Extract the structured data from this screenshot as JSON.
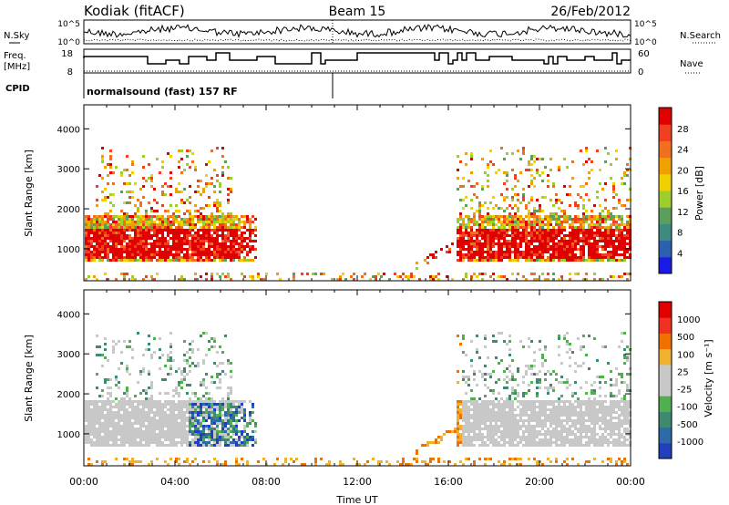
{
  "header": {
    "station": "Kodiak (fitACF)",
    "beam": "Beam 15",
    "date": "26/Feb/2012"
  },
  "panels": {
    "nsky_label": "N.Sky",
    "nsearch_label": "N.Search",
    "freq_label_top": "Freq.",
    "freq_label_unit": "[MHz]",
    "nave_label": "Nave",
    "cpid_label": "CPID",
    "cpid_text": "normalsound (fast) 157 RF",
    "noise_ticks": [
      "10^5",
      "10^0"
    ],
    "freq_ticks": [
      "18",
      "8"
    ],
    "nave_ticks": [
      "60",
      "0"
    ]
  },
  "chart_data": [
    {
      "type": "heatmap",
      "name": "Power",
      "ylabel": "Slant Range [km]",
      "ylim": [
        200,
        4600
      ],
      "yticks": [
        "4000",
        "3000",
        "2000",
        "1000"
      ],
      "xlim_hours": [
        0,
        24
      ],
      "xticks": [
        "00:00",
        "04:00",
        "08:00",
        "12:00",
        "16:00",
        "20:00",
        "00:00"
      ],
      "colorbar": {
        "label": "Power [dB]",
        "ticks": [
          "28",
          "24",
          "20",
          "16",
          "12",
          "8",
          "4"
        ],
        "range": [
          0,
          30
        ],
        "colors": [
          "#1a1ae6",
          "#2d5fb0",
          "#3d8a80",
          "#5aa05a",
          "#9ccf2e",
          "#f0d000",
          "#f0a000",
          "#f07020",
          "#f04020",
          "#e00000"
        ]
      }
    },
    {
      "type": "heatmap",
      "name": "Velocity",
      "ylabel": "Slant Range [km]",
      "xlabel": "Time UT",
      "ylim": [
        200,
        4600
      ],
      "yticks": [
        "4000",
        "3000",
        "2000",
        "1000"
      ],
      "xlim_hours": [
        0,
        24
      ],
      "xticks": [
        "00:00",
        "04:00",
        "08:00",
        "12:00",
        "16:00",
        "20:00",
        "00:00"
      ],
      "colorbar": {
        "label": "Velocity [m s⁻¹]",
        "ticks": [
          "1000",
          "500",
          "100",
          "25",
          "-25",
          "-100",
          "-500",
          "-1000"
        ],
        "colors": [
          "#2040c0",
          "#2d6aa8",
          "#3d8a70",
          "#50b050",
          "#c8c8c8",
          "#c8c8c8",
          "#f0b030",
          "#f07000",
          "#f03020",
          "#e00000"
        ]
      }
    }
  ]
}
